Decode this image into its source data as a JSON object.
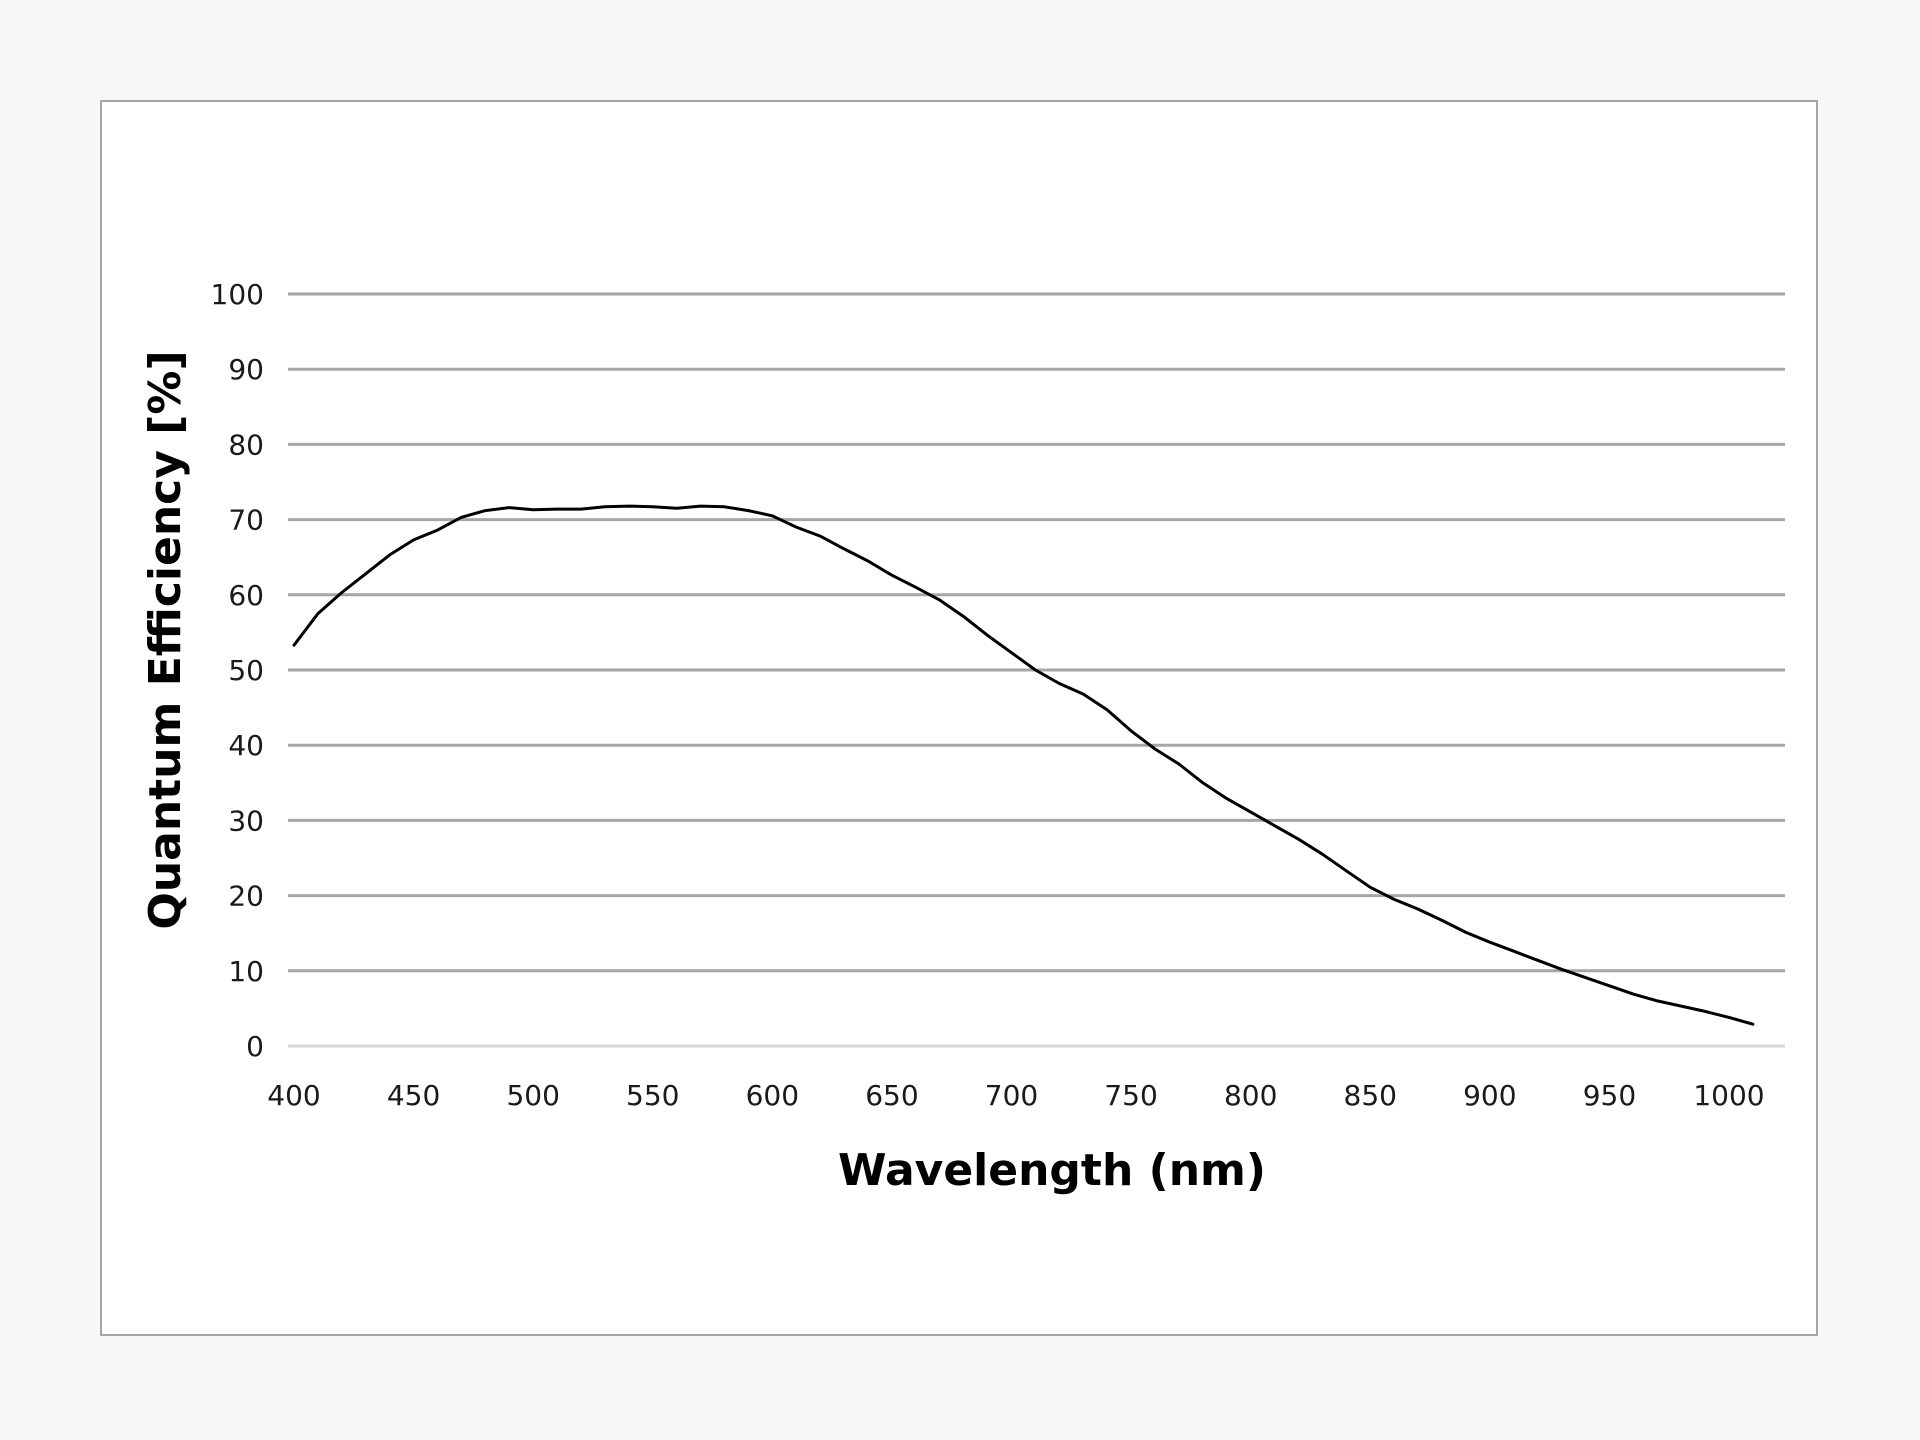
{
  "chart_data": {
    "type": "line",
    "title": "",
    "xlabel": "Wavelength (nm)",
    "ylabel": "Quantum Efficiency [%]",
    "xlim": [
      400,
      1000
    ],
    "ylim": [
      0,
      100
    ],
    "x_ticks": [
      400,
      450,
      500,
      550,
      600,
      650,
      700,
      750,
      800,
      850,
      900,
      950,
      1000
    ],
    "y_ticks": [
      0,
      10,
      20,
      30,
      40,
      50,
      60,
      70,
      80,
      90,
      100
    ],
    "grid": "horizontal",
    "legend": "none",
    "colors": {
      "line": "#000000",
      "grid": "#a6a6a6",
      "baseline": "#d9d9d9"
    },
    "series": [
      {
        "x": [
          400,
          410,
          420,
          430,
          440,
          450,
          460,
          470,
          480,
          490,
          500,
          510,
          520,
          530,
          540,
          550,
          560,
          570,
          580,
          590,
          600,
          610,
          620,
          630,
          640,
          650,
          660,
          670,
          680,
          690,
          700,
          710,
          720,
          730,
          740,
          750,
          760,
          770,
          780,
          790,
          800,
          810,
          820,
          830,
          840,
          850,
          860,
          870,
          880,
          890,
          900,
          910,
          920,
          930,
          940,
          950,
          960,
          970,
          980,
          990,
          1000,
          1010
        ],
        "y": [
          53.3,
          57.5,
          60.3,
          62.8,
          65.3,
          67.3,
          68.6,
          70.3,
          71.2,
          71.6,
          71.3,
          71.4,
          71.4,
          71.7,
          71.8,
          71.7,
          71.5,
          71.8,
          71.7,
          71.2,
          70.5,
          69.0,
          67.8,
          66.1,
          64.5,
          62.6,
          61.0,
          59.3,
          57.1,
          54.6,
          52.3,
          50.0,
          48.2,
          46.8,
          44.7,
          41.9,
          39.5,
          37.5,
          35.0,
          32.9,
          31.1,
          29.3,
          27.5,
          25.5,
          23.3,
          21.1,
          19.5,
          18.2,
          16.7,
          15.1,
          13.8,
          12.6,
          11.4,
          10.2,
          9.1,
          8.0,
          6.9,
          6.0,
          5.3,
          4.6,
          3.8,
          2.9
        ]
      }
    ]
  }
}
